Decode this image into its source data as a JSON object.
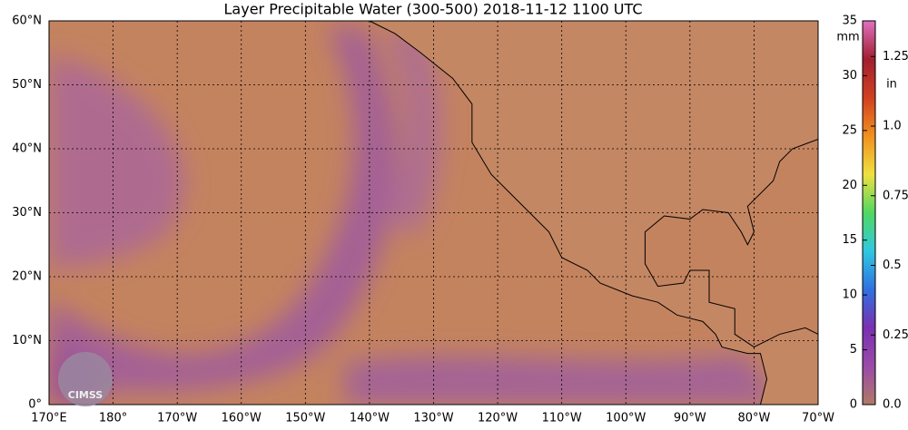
{
  "title": "Layer Precipitable Water (300-500)  2018-11-12 1100 UTC",
  "latitude_labels": [
    "0°",
    "10°N",
    "20°N",
    "30°N",
    "40°N",
    "50°N",
    "60°N"
  ],
  "longitude_labels": [
    "170°E",
    "180°",
    "170°W",
    "160°W",
    "150°W",
    "140°W",
    "130°W",
    "120°W",
    "110°W",
    "100°W",
    "90°W",
    "80°W",
    "70°W"
  ],
  "colorbar": {
    "range": [
      0,
      35
    ],
    "mm_unit": "mm",
    "mm_ticks": [
      0,
      5,
      10,
      15,
      20,
      25,
      30,
      35
    ],
    "in_unit": "in",
    "in_ticks": [
      {
        "value": 0,
        "label": "0.0"
      },
      {
        "value": 0.25,
        "label": "0.25"
      },
      {
        "value": 0.5,
        "label": "0.5"
      },
      {
        "value": 0.75,
        "label": "0.75"
      },
      {
        "value": 1,
        "label": "1.0"
      },
      {
        "value": 1.25,
        "label": "1.25"
      }
    ],
    "mm_per_in": 25.4,
    "colors": [
      "#b07a66",
      "#9a4aa8",
      "#7a30b0",
      "#3070e0",
      "#30c8e0",
      "#50d860",
      "#f0e040",
      "#f09020",
      "#d04020",
      "#a02030",
      "#e070c0"
    ]
  },
  "logo": "CIMSS"
}
